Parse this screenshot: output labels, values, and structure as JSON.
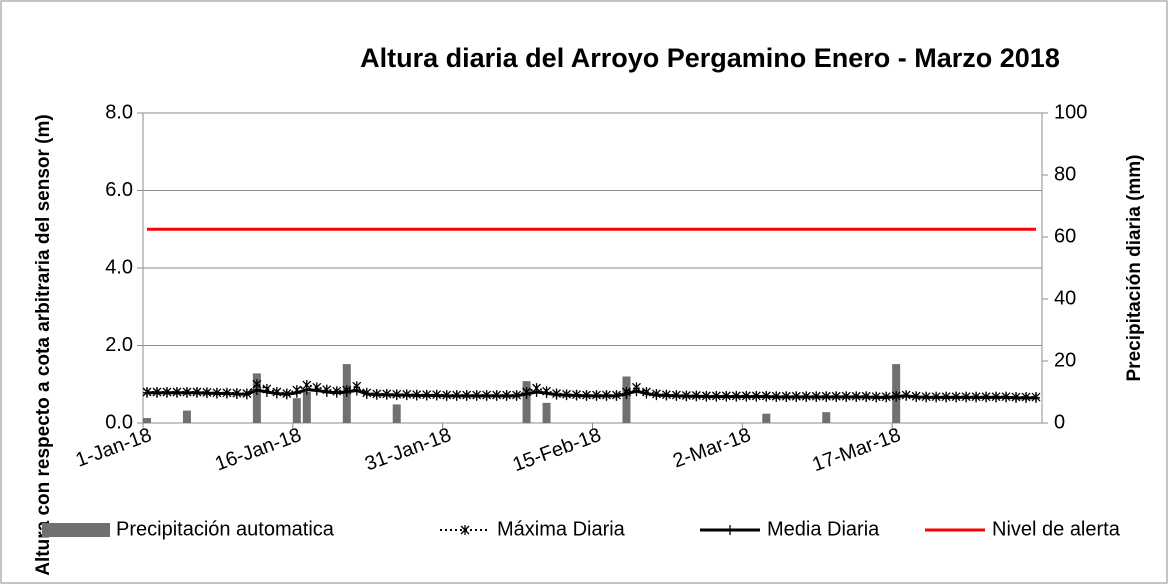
{
  "chart_data": {
    "type": "combo",
    "title": "Altura diaria del Arroyo Pergamino   Enero - Marzo 2018",
    "y_label": "Altura con respecto a cota arbitraria del sensor (m)",
    "y2_label": "Precipitación diaria (mm)",
    "x": [
      "2018-01-01",
      "2018-01-02",
      "2018-01-03",
      "2018-01-04",
      "2018-01-05",
      "2018-01-06",
      "2018-01-07",
      "2018-01-08",
      "2018-01-09",
      "2018-01-10",
      "2018-01-11",
      "2018-01-12",
      "2018-01-13",
      "2018-01-14",
      "2018-01-15",
      "2018-01-16",
      "2018-01-17",
      "2018-01-18",
      "2018-01-19",
      "2018-01-20",
      "2018-01-21",
      "2018-01-22",
      "2018-01-23",
      "2018-01-24",
      "2018-01-25",
      "2018-01-26",
      "2018-01-27",
      "2018-01-28",
      "2018-01-29",
      "2018-01-30",
      "2018-01-31",
      "2018-02-01",
      "2018-02-02",
      "2018-02-03",
      "2018-02-04",
      "2018-02-05",
      "2018-02-06",
      "2018-02-07",
      "2018-02-08",
      "2018-02-09",
      "2018-02-10",
      "2018-02-11",
      "2018-02-12",
      "2018-02-13",
      "2018-02-14",
      "2018-02-15",
      "2018-02-16",
      "2018-02-17",
      "2018-02-18",
      "2018-02-19",
      "2018-02-20",
      "2018-02-21",
      "2018-02-22",
      "2018-02-23",
      "2018-02-24",
      "2018-02-25",
      "2018-02-26",
      "2018-02-27",
      "2018-02-28",
      "2018-03-01",
      "2018-03-02",
      "2018-03-03",
      "2018-03-04",
      "2018-03-05",
      "2018-03-06",
      "2018-03-07",
      "2018-03-08",
      "2018-03-09",
      "2018-03-10",
      "2018-03-11",
      "2018-03-12",
      "2018-03-13",
      "2018-03-14",
      "2018-03-15",
      "2018-03-16",
      "2018-03-17",
      "2018-03-18",
      "2018-03-19",
      "2018-03-20",
      "2018-03-21",
      "2018-03-22",
      "2018-03-23",
      "2018-03-24",
      "2018-03-25",
      "2018-03-26",
      "2018-03-27",
      "2018-03-28",
      "2018-03-29",
      "2018-03-30",
      "2018-03-31"
    ],
    "xlim": [
      "2018-01-01",
      "2018-04-01"
    ],
    "xticks": [
      {
        "value": "2018-01-01",
        "label": "1-Jan-18"
      },
      {
        "value": "2018-01-16",
        "label": "16-Jan-18"
      },
      {
        "value": "2018-01-31",
        "label": "31-Jan-18"
      },
      {
        "value": "2018-02-15",
        "label": "15-Feb-18"
      },
      {
        "value": "2018-03-02",
        "label": "2-Mar-18"
      },
      {
        "value": "2018-03-17",
        "label": "17-Mar-18"
      }
    ],
    "ylim": [
      0,
      8
    ],
    "yticks": [
      {
        "value": 0,
        "label": "0.0"
      },
      {
        "value": 2,
        "label": "2.0"
      },
      {
        "value": 4,
        "label": "4.0"
      },
      {
        "value": 6,
        "label": "6.0"
      },
      {
        "value": 8,
        "label": "8.0"
      }
    ],
    "y2lim": [
      0,
      100
    ],
    "y2ticks": [
      0,
      20,
      40,
      60,
      80,
      100
    ],
    "grid": true,
    "series": [
      {
        "name": "Precipitación automatica",
        "kind": "bar",
        "axis": "y2",
        "color": "#707070",
        "values": [
          1.6,
          0,
          0,
          0,
          4,
          0,
          0,
          0,
          0,
          0,
          0,
          16,
          0,
          0,
          0,
          8,
          10,
          0,
          0,
          0,
          19,
          0,
          0,
          0,
          0,
          6,
          0,
          0,
          0,
          0,
          0,
          0,
          0,
          0,
          0,
          0,
          0,
          0,
          13.5,
          0,
          6.5,
          0,
          0,
          0,
          0,
          0,
          0,
          0,
          15,
          0,
          0,
          0,
          0,
          0,
          0,
          0,
          0,
          0,
          0,
          0,
          0,
          0,
          3,
          0,
          0,
          0,
          0,
          0,
          3.5,
          0,
          0,
          0,
          0,
          0,
          0,
          19,
          0,
          0,
          0,
          0,
          0,
          0,
          0,
          0,
          0,
          0,
          0,
          0,
          0,
          0
        ]
      },
      {
        "name": "Máxima Diaria",
        "kind": "line-x",
        "color": "#000000",
        "values": [
          0.8,
          0.8,
          0.8,
          0.8,
          0.8,
          0.8,
          0.79,
          0.78,
          0.78,
          0.77,
          0.76,
          1.0,
          0.88,
          0.8,
          0.76,
          0.85,
          0.98,
          0.92,
          0.86,
          0.82,
          0.85,
          0.95,
          0.78,
          0.75,
          0.75,
          0.74,
          0.74,
          0.73,
          0.73,
          0.73,
          0.72,
          0.72,
          0.72,
          0.72,
          0.72,
          0.72,
          0.72,
          0.72,
          0.8,
          0.9,
          0.82,
          0.76,
          0.74,
          0.73,
          0.72,
          0.72,
          0.72,
          0.72,
          0.8,
          0.92,
          0.8,
          0.75,
          0.73,
          0.72,
          0.71,
          0.71,
          0.7,
          0.7,
          0.7,
          0.7,
          0.7,
          0.7,
          0.7,
          0.69,
          0.69,
          0.69,
          0.69,
          0.69,
          0.69,
          0.69,
          0.69,
          0.69,
          0.69,
          0.68,
          0.68,
          0.7,
          0.72,
          0.69,
          0.68,
          0.68,
          0.68,
          0.68,
          0.68,
          0.68,
          0.68,
          0.68,
          0.68,
          0.67,
          0.67,
          0.67
        ]
      },
      {
        "name": "Media Diaria",
        "kind": "line-plus",
        "color": "#000000",
        "values": [
          0.78,
          0.78,
          0.78,
          0.78,
          0.78,
          0.78,
          0.77,
          0.76,
          0.76,
          0.75,
          0.74,
          0.85,
          0.8,
          0.76,
          0.74,
          0.78,
          0.86,
          0.84,
          0.8,
          0.78,
          0.8,
          0.84,
          0.75,
          0.73,
          0.73,
          0.72,
          0.72,
          0.71,
          0.71,
          0.71,
          0.7,
          0.7,
          0.7,
          0.7,
          0.7,
          0.7,
          0.7,
          0.7,
          0.75,
          0.8,
          0.77,
          0.73,
          0.72,
          0.71,
          0.7,
          0.7,
          0.7,
          0.7,
          0.75,
          0.82,
          0.76,
          0.72,
          0.71,
          0.7,
          0.69,
          0.69,
          0.68,
          0.68,
          0.68,
          0.68,
          0.68,
          0.68,
          0.68,
          0.67,
          0.67,
          0.67,
          0.67,
          0.67,
          0.67,
          0.67,
          0.67,
          0.67,
          0.67,
          0.66,
          0.66,
          0.68,
          0.7,
          0.67,
          0.66,
          0.66,
          0.66,
          0.66,
          0.66,
          0.66,
          0.66,
          0.66,
          0.66,
          0.65,
          0.65,
          0.65
        ]
      },
      {
        "name": "Nivel de alerta",
        "kind": "line",
        "color": "#ff0000",
        "values": [
          5,
          5,
          5,
          5,
          5,
          5,
          5,
          5,
          5,
          5,
          5,
          5,
          5,
          5,
          5,
          5,
          5,
          5,
          5,
          5,
          5,
          5,
          5,
          5,
          5,
          5,
          5,
          5,
          5,
          5,
          5,
          5,
          5,
          5,
          5,
          5,
          5,
          5,
          5,
          5,
          5,
          5,
          5,
          5,
          5,
          5,
          5,
          5,
          5,
          5,
          5,
          5,
          5,
          5,
          5,
          5,
          5,
          5,
          5,
          5,
          5,
          5,
          5,
          5,
          5,
          5,
          5,
          5,
          5,
          5,
          5,
          5,
          5,
          5,
          5,
          5,
          5,
          5,
          5,
          5,
          5,
          5,
          5,
          5,
          5,
          5,
          5,
          5,
          5,
          5
        ]
      }
    ]
  }
}
